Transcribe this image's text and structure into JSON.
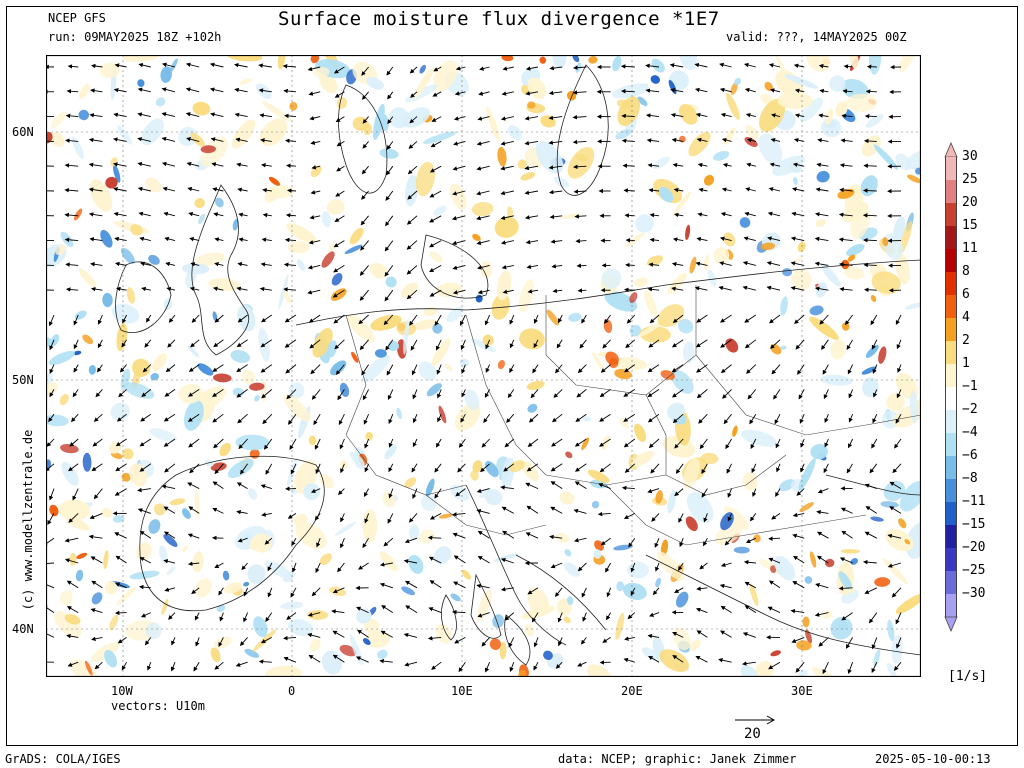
{
  "header": {
    "model": "NCEP GFS",
    "run": "run: 09MAY2025 18Z +102h",
    "title": "Surface moisture flux divergence *1E7",
    "valid": "valid: ???, 14MAY2025 00Z"
  },
  "side_credit": "(c) www.modellzentrale.de",
  "map": {
    "lat_labels": [
      "60N",
      "50N",
      "40N"
    ],
    "lon_labels": [
      "10W",
      "0",
      "10E",
      "20E",
      "30E"
    ],
    "vector_note": "vectors: U10m",
    "reference_vector": "20"
  },
  "colorbar": {
    "levels": [
      "30",
      "25",
      "20",
      "15",
      "11",
      "8",
      "6",
      "4",
      "2",
      "1",
      "−1",
      "−2",
      "−4",
      "−6",
      "−8",
      "−11",
      "−15",
      "−20",
      "−25",
      "−30"
    ],
    "colors": [
      "#f0b8b8",
      "#e08080",
      "#c84030",
      "#a01818",
      "#b40000",
      "#e03000",
      "#f06010",
      "#f4a020",
      "#fadc80",
      "#fff4d0",
      "#ffffff",
      "#dcf0fa",
      "#b0e0f4",
      "#78bce8",
      "#4890dc",
      "#2060c8",
      "#2020a0",
      "#3838c0",
      "#6c6cd8",
      "#a8a0f0"
    ],
    "unit": "[1/s]"
  },
  "footer": {
    "left": "GrADS: COLA/IGES",
    "middle": "data: NCEP; graphic: Janek Zimmer",
    "right": "2025-05-10-00:13"
  }
}
